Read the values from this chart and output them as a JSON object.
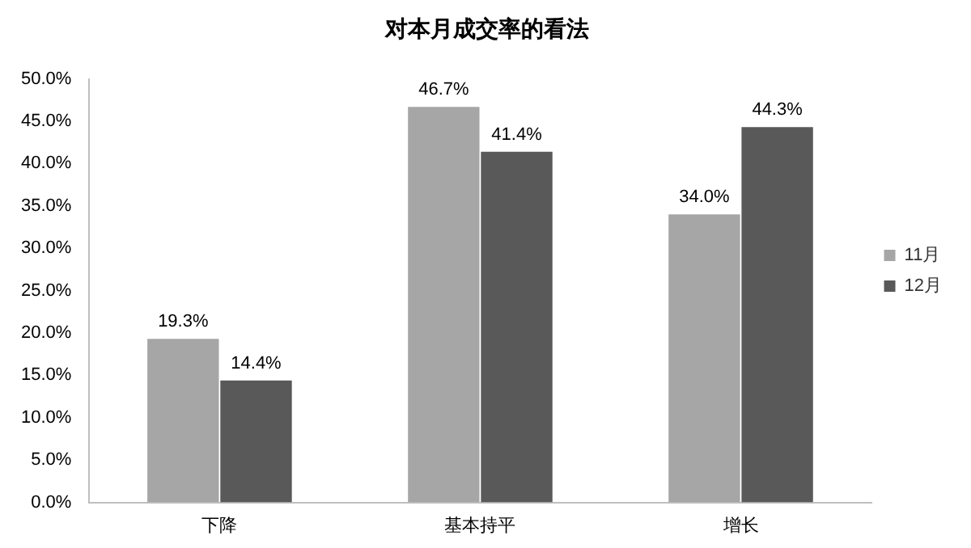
{
  "chart_data": {
    "type": "bar",
    "title": "对本月成交率的看法",
    "categories": [
      "下降",
      "基本持平",
      "增长"
    ],
    "series": [
      {
        "name": "11月",
        "color": "#a6a6a6",
        "values": [
          19.3,
          46.7,
          34.0
        ],
        "value_labels": [
          "19.3%",
          "46.7%",
          "34.0%"
        ]
      },
      {
        "name": "12月",
        "color": "#595959",
        "values": [
          14.4,
          41.4,
          44.3
        ],
        "value_labels": [
          "14.4%",
          "41.4%",
          "44.3%"
        ]
      }
    ],
    "ylim": [
      0,
      50
    ],
    "yticks": [
      {
        "value": 0,
        "label": "0.0%"
      },
      {
        "value": 5,
        "label": "5.0%"
      },
      {
        "value": 10,
        "label": "10.0%"
      },
      {
        "value": 15,
        "label": "15.0%"
      },
      {
        "value": 20,
        "label": "20.0%"
      },
      {
        "value": 25,
        "label": "25.0%"
      },
      {
        "value": 30,
        "label": "30.0%"
      },
      {
        "value": 35,
        "label": "35.0%"
      },
      {
        "value": 40,
        "label": "40.0%"
      },
      {
        "value": 45,
        "label": "45.0%"
      },
      {
        "value": 50,
        "label": "50.0%"
      }
    ],
    "grid": false,
    "legend": "right"
  }
}
